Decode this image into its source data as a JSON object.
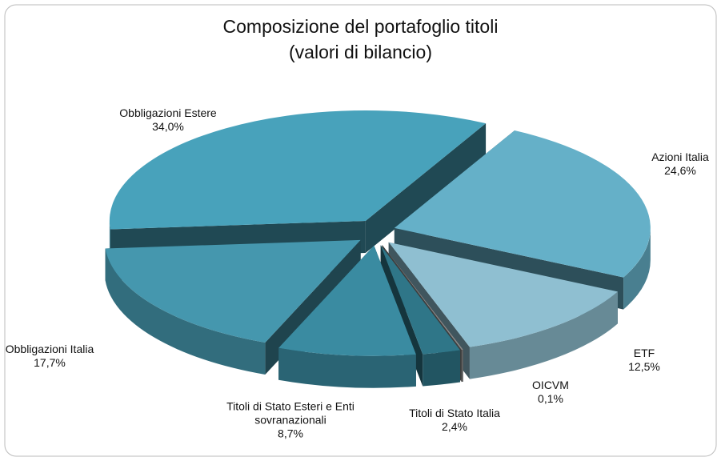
{
  "chart_data": {
    "type": "pie3d",
    "title": "Composizione del portafoglio titoli",
    "subtitle": "(valori di bilancio)",
    "categories": [
      "Azioni Italia",
      "ETF",
      "OICVM",
      "Titoli di Stato Italia",
      "Titoli di Stato Esteri e Enti sovranazionali",
      "Obbligazioni Italia",
      "Obbligazioni Estere"
    ],
    "values": [
      24.6,
      12.5,
      0.1,
      2.4,
      8.7,
      17.7,
      34.0
    ],
    "value_labels": [
      "24,6%",
      "12,5%",
      "0,1%",
      "2,4%",
      "8,7%",
      "17,7%",
      "34,0%"
    ],
    "colors": [
      "#65b0c8",
      "#8fbfd1",
      "#8a8a8a",
      "#2f7688",
      "#3a8ba1",
      "#4597ae",
      "#48a2bb"
    ]
  }
}
